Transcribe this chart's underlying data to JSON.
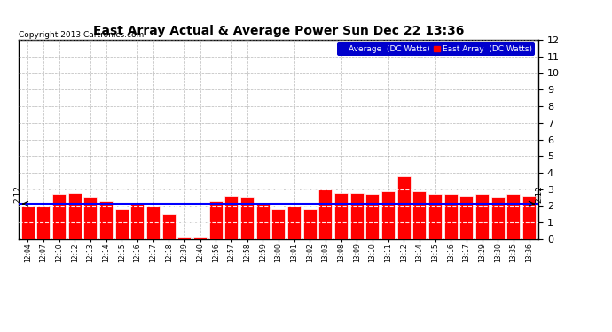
{
  "title": "East Array Actual & Average Power Sun Dec 22 13:36",
  "copyright": "Copyright 2013 Cartronics.com",
  "legend_labels": [
    "Average  (DC Watts)",
    "East Array  (DC Watts)"
  ],
  "legend_colors": [
    "#0000cc",
    "#ff0000"
  ],
  "avg_value": 2.12,
  "avg_annotation": "2.12",
  "ylim": [
    0.0,
    12.0
  ],
  "yticks": [
    0.0,
    1.0,
    2.0,
    3.0,
    4.0,
    5.0,
    6.0,
    7.0,
    8.0,
    9.0,
    10.0,
    11.0,
    12.0
  ],
  "bar_color": "#ff0000",
  "avg_line_color": "#0000ff",
  "background_color": "#ffffff",
  "grid_color": "#999999",
  "x_labels": [
    "12:04",
    "12:07",
    "12:10",
    "12:12",
    "12:13",
    "12:14",
    "12:15",
    "12:16",
    "12:17",
    "12:18",
    "12:39",
    "12:40",
    "12:56",
    "12:57",
    "12:58",
    "12:59",
    "13:00",
    "13:01",
    "13:02",
    "13:03",
    "13:08",
    "13:09",
    "13:10",
    "13:11",
    "13:12",
    "13:14",
    "13:15",
    "13:16",
    "13:17",
    "13:29",
    "13:30",
    "13:35",
    "13:36"
  ],
  "bar_values": [
    2.0,
    2.0,
    2.7,
    2.8,
    2.5,
    2.3,
    1.8,
    2.2,
    2.0,
    1.5,
    0.1,
    0.1,
    2.3,
    2.6,
    2.5,
    2.1,
    1.8,
    2.0,
    1.8,
    3.0,
    2.8,
    2.8,
    2.7,
    2.9,
    3.8,
    2.9,
    2.7,
    2.7,
    2.6,
    2.7,
    2.5,
    2.7,
    2.6
  ],
  "figsize": [
    6.9,
    3.75
  ],
  "dpi": 100
}
